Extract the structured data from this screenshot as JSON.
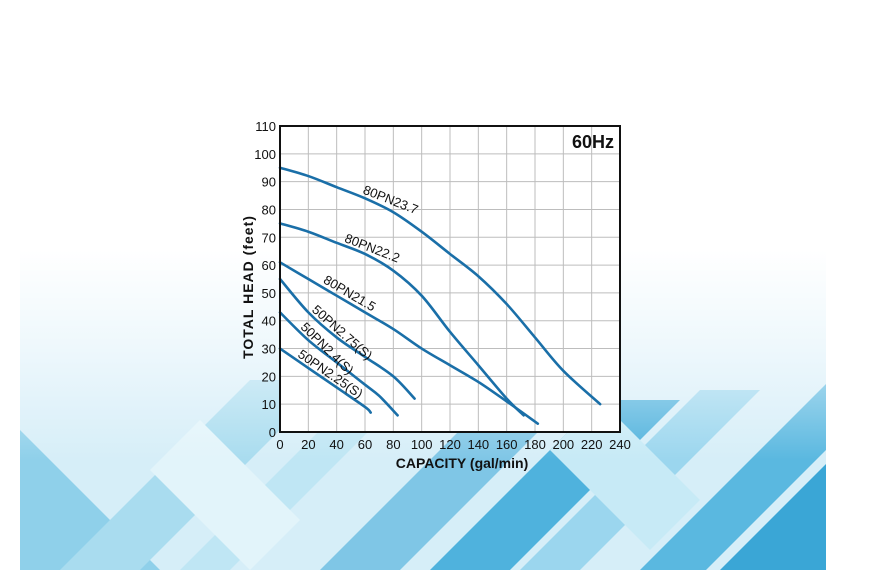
{
  "chart_data": {
    "type": "line",
    "badge": "60Hz",
    "xlabel": "CAPACITY (gal/min)",
    "ylabel": "TOTAL HEAD (feet)",
    "xlim": [
      0,
      240
    ],
    "ylim": [
      0,
      110
    ],
    "x_ticks": [
      "0",
      "20",
      "40",
      "60",
      "80",
      "100",
      "120",
      "140",
      "160",
      "180",
      "200",
      "220",
      "240"
    ],
    "y_ticks": [
      "0",
      "10",
      "20",
      "30",
      "40",
      "50",
      "60",
      "70",
      "80",
      "90",
      "100",
      "110"
    ],
    "grid": true,
    "colors": {
      "curve": "#1a6fa8",
      "grid": "#bdbdbd",
      "frame": "#111111"
    },
    "series": [
      {
        "name": "80PN23.7",
        "x": [
          0,
          20,
          40,
          60,
          80,
          100,
          120,
          140,
          160,
          180,
          200,
          226
        ],
        "y": [
          95,
          92,
          88,
          84,
          79,
          72,
          64,
          56,
          46,
          34,
          22,
          10
        ]
      },
      {
        "name": "80PN22.2",
        "x": [
          0,
          20,
          40,
          60,
          80,
          100,
          120,
          140,
          160,
          172
        ],
        "y": [
          75,
          72,
          68,
          64,
          58,
          49,
          36,
          24,
          12,
          6
        ]
      },
      {
        "name": "80PN21.5",
        "x": [
          0,
          20,
          40,
          60,
          80,
          100,
          120,
          140,
          160,
          182
        ],
        "y": [
          61,
          55,
          49,
          43,
          37,
          30,
          24,
          18,
          11,
          3
        ]
      },
      {
        "name": "50PN2.75(S)",
        "x": [
          0,
          20,
          40,
          60,
          80,
          95
        ],
        "y": [
          55,
          43,
          34,
          27,
          20,
          12
        ]
      },
      {
        "name": "50PN2.4(S)",
        "x": [
          0,
          20,
          40,
          60,
          70,
          83
        ],
        "y": [
          43,
          33,
          25,
          17,
          13,
          6
        ]
      },
      {
        "name": "50PN2.25(S)",
        "x": [
          0,
          20,
          40,
          60,
          64
        ],
        "y": [
          30,
          23,
          16,
          9,
          7
        ]
      }
    ]
  }
}
